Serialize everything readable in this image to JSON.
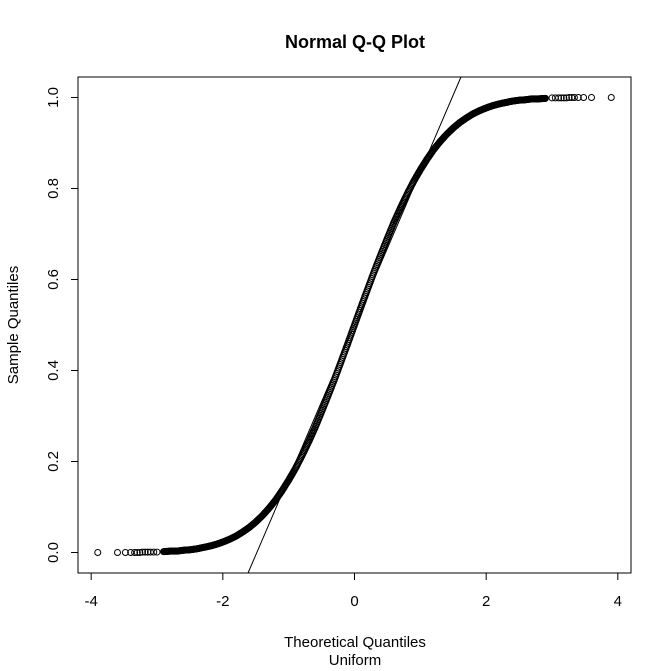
{
  "chart_data": {
    "type": "scatter",
    "title": "Normal Q-Q Plot",
    "xlabel": "Theoretical Quantiles",
    "xsublabel": "Uniform",
    "ylabel": "Sample Quantiles",
    "xlim": [
      -4.2,
      4.2
    ],
    "ylim": [
      -0.045,
      1.045
    ],
    "xticks": [
      -4,
      -2,
      0,
      2,
      4
    ],
    "xtick_labels": [
      "-4",
      "-2",
      "0",
      "2",
      "4"
    ],
    "yticks": [
      0.0,
      0.2,
      0.4,
      0.6,
      0.8,
      1.0
    ],
    "ytick_labels": [
      "0.0",
      "0.2",
      "0.4",
      "0.6",
      "0.8",
      "1.0"
    ],
    "grid": false,
    "marker": "open-circle",
    "reference_line": {
      "slope": 0.337,
      "intercept": 0.5
    },
    "series": [
      {
        "x": [
          -3.9,
          -3.6,
          -3.48,
          -3.4,
          -3.34,
          -3.3,
          -3.26,
          -3.22,
          -3.18,
          -3.14,
          -3.1,
          -3.05,
          -3.0,
          -2.9,
          -2.8,
          -2.7,
          -2.6,
          -2.5,
          -2.4,
          -2.3,
          -2.2,
          -2.1,
          -2.0,
          -1.9,
          -1.8,
          -1.7,
          -1.6,
          -1.5,
          -1.4,
          -1.3,
          -1.2,
          -1.1,
          -1.0,
          -0.9,
          -0.8,
          -0.7,
          -0.6,
          -0.5,
          -0.4,
          -0.3,
          -0.2,
          -0.1,
          0.0,
          0.1,
          0.2,
          0.3,
          0.4,
          0.5,
          0.6,
          0.7,
          0.8,
          0.9,
          1.0,
          1.1,
          1.2,
          1.3,
          1.4,
          1.5,
          1.6,
          1.7,
          1.8,
          1.9,
          2.0,
          2.1,
          2.2,
          2.3,
          2.4,
          2.5,
          2.6,
          2.7,
          2.8,
          2.9,
          3.0,
          3.05,
          3.1,
          3.14,
          3.18,
          3.22,
          3.26,
          3.3,
          3.34,
          3.4,
          3.48,
          3.6,
          3.9
        ],
        "y": [
          0.0,
          0.0,
          0.0,
          0.0,
          0.0,
          0.0,
          0.0,
          0.001,
          0.001,
          0.001,
          0.001,
          0.001,
          0.001,
          0.002,
          0.003,
          0.003,
          0.005,
          0.006,
          0.008,
          0.011,
          0.014,
          0.018,
          0.023,
          0.029,
          0.036,
          0.045,
          0.055,
          0.067,
          0.081,
          0.097,
          0.115,
          0.136,
          0.159,
          0.184,
          0.212,
          0.242,
          0.274,
          0.309,
          0.345,
          0.382,
          0.421,
          0.46,
          0.5,
          0.54,
          0.579,
          0.618,
          0.655,
          0.691,
          0.726,
          0.758,
          0.788,
          0.816,
          0.841,
          0.864,
          0.885,
          0.903,
          0.919,
          0.933,
          0.945,
          0.955,
          0.964,
          0.971,
          0.977,
          0.982,
          0.986,
          0.989,
          0.992,
          0.994,
          0.995,
          0.997,
          0.997,
          0.998,
          0.999,
          0.999,
          0.999,
          0.999,
          0.999,
          0.999,
          1.0,
          1.0,
          1.0,
          1.0,
          1.0,
          1.0,
          1.0
        ]
      }
    ]
  }
}
